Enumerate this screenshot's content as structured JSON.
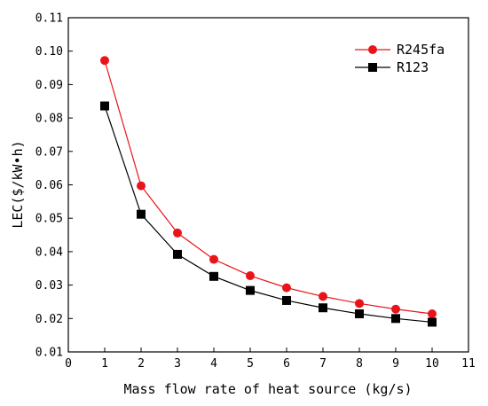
{
  "chart_data": {
    "type": "line",
    "xlabel": "Mass flow rate of heat source (kg/s)",
    "ylabel": "LEC($/kW•h)",
    "xlim": [
      0,
      11
    ],
    "ylim": [
      0.01,
      0.11
    ],
    "x_ticks": [
      "0",
      "1",
      "2",
      "3",
      "4",
      "5",
      "6",
      "7",
      "8",
      "9",
      "10",
      "11"
    ],
    "y_ticks": [
      "0.01",
      "0.02",
      "0.03",
      "0.04",
      "0.05",
      "0.06",
      "0.07",
      "0.08",
      "0.09",
      "0.10",
      "0.11"
    ],
    "grid": false,
    "legend_position": "top-right",
    "x": [
      1,
      2,
      3,
      4,
      5,
      6,
      7,
      8,
      9,
      10
    ],
    "series": [
      {
        "name": "R245fa",
        "color": "#e8141a",
        "marker": "circle",
        "values": [
          0.0972,
          0.0597,
          0.0456,
          0.0377,
          0.0328,
          0.0292,
          0.0266,
          0.0245,
          0.0228,
          0.0214
        ]
      },
      {
        "name": "R123",
        "color": "#000000",
        "marker": "square",
        "values": [
          0.0836,
          0.0512,
          0.0392,
          0.0326,
          0.0284,
          0.0254,
          0.0232,
          0.0214,
          0.02,
          0.0189
        ]
      }
    ]
  }
}
